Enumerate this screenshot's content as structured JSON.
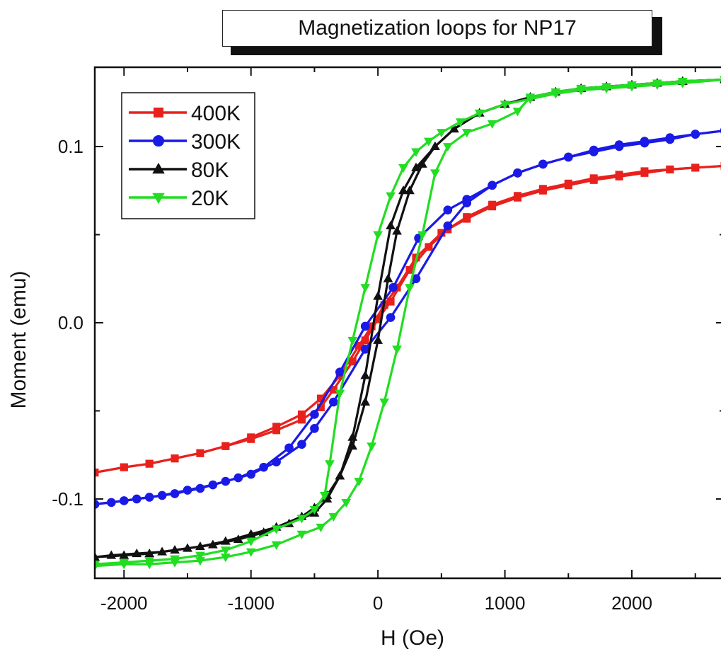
{
  "chart_data": {
    "type": "line",
    "title": "Magnetization loops for NP17",
    "xlabel": "H (Oe)",
    "ylabel": "Moment (emu)",
    "xlim": [
      -2230,
      2730
    ],
    "ylim": [
      -0.145,
      0.145
    ],
    "x_ticks": [
      -2000,
      -1000,
      0,
      1000,
      2000
    ],
    "x_tick_labels": [
      "-2000",
      "-1000",
      "0",
      "1000",
      "2000"
    ],
    "y_ticks": [
      -0.1,
      0.0,
      0.1
    ],
    "y_tick_labels": [
      "-0.1",
      "0.0",
      "0.1"
    ],
    "legend_position": "top-left",
    "grid": false,
    "series": [
      {
        "name": "400K",
        "color": "#e8211d",
        "marker": "square",
        "branches": [
          [
            [
              -2230,
              -0.085
            ],
            [
              -2000,
              -0.082
            ],
            [
              -1800,
              -0.08
            ],
            [
              -1600,
              -0.077
            ],
            [
              -1400,
              -0.074
            ],
            [
              -1200,
              -0.07
            ],
            [
              -1000,
              -0.066
            ],
            [
              -800,
              -0.061
            ],
            [
              -600,
              -0.055
            ],
            [
              -450,
              -0.048
            ],
            [
              -350,
              -0.038
            ],
            [
              -200,
              -0.022
            ],
            [
              -100,
              -0.01
            ],
            [
              0,
              0.002
            ],
            [
              100,
              0.012
            ],
            [
              250,
              0.03
            ],
            [
              400,
              0.043
            ],
            [
              550,
              0.053
            ],
            [
              700,
              0.06
            ],
            [
              900,
              0.067
            ],
            [
              1100,
              0.072
            ],
            [
              1300,
              0.076
            ],
            [
              1500,
              0.079
            ],
            [
              1700,
              0.082
            ],
            [
              1900,
              0.084
            ],
            [
              2100,
              0.086
            ],
            [
              2300,
              0.087
            ],
            [
              2500,
              0.088
            ],
            [
              2730,
              0.089
            ]
          ],
          [
            [
              2730,
              0.089
            ],
            [
              2500,
              0.088
            ],
            [
              2300,
              0.087
            ],
            [
              2100,
              0.085
            ],
            [
              1900,
              0.083
            ],
            [
              1700,
              0.081
            ],
            [
              1500,
              0.078
            ],
            [
              1300,
              0.075
            ],
            [
              1100,
              0.071
            ],
            [
              900,
              0.066
            ],
            [
              700,
              0.059
            ],
            [
              500,
              0.051
            ],
            [
              300,
              0.037
            ],
            [
              150,
              0.02
            ],
            [
              50,
              0.01
            ],
            [
              -50,
              -0.002
            ],
            [
              -150,
              -0.013
            ],
            [
              -300,
              -0.03
            ],
            [
              -450,
              -0.043
            ],
            [
              -600,
              -0.052
            ],
            [
              -800,
              -0.059
            ],
            [
              -1000,
              -0.065
            ],
            [
              -1200,
              -0.07
            ],
            [
              -1400,
              -0.074
            ],
            [
              -1600,
              -0.077
            ],
            [
              -1800,
              -0.08
            ],
            [
              -2000,
              -0.082
            ],
            [
              -2230,
              -0.085
            ]
          ]
        ]
      },
      {
        "name": "300K",
        "color": "#1a1ae6",
        "marker": "circle",
        "branches": [
          [
            [
              -2230,
              -0.103
            ],
            [
              -2000,
              -0.101
            ],
            [
              -1800,
              -0.099
            ],
            [
              -1600,
              -0.097
            ],
            [
              -1400,
              -0.094
            ],
            [
              -1200,
              -0.09
            ],
            [
              -1000,
              -0.086
            ],
            [
              -800,
              -0.079
            ],
            [
              -600,
              -0.069
            ],
            [
              -500,
              -0.06
            ],
            [
              -350,
              -0.045
            ],
            [
              -100,
              -0.015
            ],
            [
              100,
              0.003
            ],
            [
              300,
              0.025
            ],
            [
              550,
              0.055
            ],
            [
              700,
              0.068
            ],
            [
              900,
              0.078
            ],
            [
              1100,
              0.085
            ],
            [
              1300,
              0.09
            ],
            [
              1500,
              0.094
            ],
            [
              1700,
              0.098
            ],
            [
              1900,
              0.101
            ],
            [
              2100,
              0.103
            ],
            [
              2300,
              0.105
            ],
            [
              2500,
              0.107
            ],
            [
              2730,
              0.109
            ]
          ],
          [
            [
              2730,
              0.109
            ],
            [
              2500,
              0.107
            ],
            [
              2300,
              0.104
            ],
            [
              2100,
              0.102
            ],
            [
              1900,
              0.1
            ],
            [
              1700,
              0.097
            ],
            [
              1500,
              0.094
            ],
            [
              1300,
              0.09
            ],
            [
              1100,
              0.085
            ],
            [
              900,
              0.078
            ],
            [
              700,
              0.07
            ],
            [
              550,
              0.064
            ],
            [
              320,
              0.048
            ],
            [
              120,
              0.02
            ],
            [
              -100,
              -0.002
            ],
            [
              -300,
              -0.028
            ],
            [
              -500,
              -0.052
            ],
            [
              -700,
              -0.071
            ],
            [
              -900,
              -0.082
            ],
            [
              -1100,
              -0.088
            ],
            [
              -1300,
              -0.092
            ],
            [
              -1500,
              -0.095
            ],
            [
              -1700,
              -0.098
            ],
            [
              -1900,
              -0.1
            ],
            [
              -2100,
              -0.102
            ],
            [
              -2230,
              -0.103
            ]
          ]
        ]
      },
      {
        "name": "80K",
        "color": "#111111",
        "marker": "triangle-up",
        "branches": [
          [
            [
              -2230,
              -0.133
            ],
            [
              -2000,
              -0.132
            ],
            [
              -1800,
              -0.131
            ],
            [
              -1600,
              -0.129
            ],
            [
              -1400,
              -0.127
            ],
            [
              -1200,
              -0.124
            ],
            [
              -1000,
              -0.12
            ],
            [
              -800,
              -0.116
            ],
            [
              -600,
              -0.11
            ],
            [
              -500,
              -0.105
            ],
            [
              -400,
              -0.098
            ],
            [
              -300,
              -0.087
            ],
            [
              -200,
              -0.07
            ],
            [
              -100,
              -0.045
            ],
            [
              0,
              -0.01
            ],
            [
              80,
              0.025
            ],
            [
              150,
              0.052
            ],
            [
              250,
              0.075
            ],
            [
              350,
              0.09
            ],
            [
              450,
              0.1
            ],
            [
              600,
              0.11
            ],
            [
              800,
              0.119
            ],
            [
              1000,
              0.124
            ],
            [
              1200,
              0.128
            ],
            [
              1400,
              0.131
            ],
            [
              1600,
              0.133
            ],
            [
              1800,
              0.134
            ],
            [
              2000,
              0.135
            ],
            [
              2200,
              0.136
            ],
            [
              2400,
              0.137
            ],
            [
              2730,
              0.138
            ]
          ],
          [
            [
              2730,
              0.138
            ],
            [
              2400,
              0.137
            ],
            [
              2200,
              0.136
            ],
            [
              2000,
              0.135
            ],
            [
              1800,
              0.134
            ],
            [
              1600,
              0.133
            ],
            [
              1400,
              0.131
            ],
            [
              1200,
              0.128
            ],
            [
              1000,
              0.124
            ],
            [
              800,
              0.119
            ],
            [
              600,
              0.11
            ],
            [
              450,
              0.1
            ],
            [
              300,
              0.088
            ],
            [
              200,
              0.075
            ],
            [
              100,
              0.055
            ],
            [
              0,
              0.015
            ],
            [
              -100,
              -0.03
            ],
            [
              -200,
              -0.065
            ],
            [
              -300,
              -0.087
            ],
            [
              -400,
              -0.1
            ],
            [
              -500,
              -0.108
            ],
            [
              -700,
              -0.114
            ],
            [
              -900,
              -0.119
            ],
            [
              -1100,
              -0.123
            ],
            [
              -1300,
              -0.126
            ],
            [
              -1500,
              -0.128
            ],
            [
              -1700,
              -0.13
            ],
            [
              -1900,
              -0.131
            ],
            [
              -2100,
              -0.132
            ],
            [
              -2230,
              -0.133
            ]
          ]
        ]
      },
      {
        "name": "20K",
        "color": "#22dd22",
        "marker": "triangle-down",
        "branches": [
          [
            [
              -2230,
              -0.137
            ],
            [
              -2000,
              -0.136
            ],
            [
              -1800,
              -0.135
            ],
            [
              -1600,
              -0.134
            ],
            [
              -1400,
              -0.132
            ],
            [
              -1200,
              -0.129
            ],
            [
              -1000,
              -0.124
            ],
            [
              -800,
              -0.117
            ],
            [
              -600,
              -0.111
            ],
            [
              -500,
              -0.106
            ],
            [
              -420,
              -0.098
            ],
            [
              -380,
              -0.08
            ],
            [
              -300,
              -0.04
            ],
            [
              -200,
              -0.01
            ],
            [
              -100,
              0.02
            ],
            [
              0,
              0.05
            ],
            [
              100,
              0.072
            ],
            [
              200,
              0.088
            ],
            [
              300,
              0.097
            ],
            [
              400,
              0.103
            ],
            [
              500,
              0.108
            ],
            [
              650,
              0.114
            ],
            [
              800,
              0.119
            ],
            [
              1000,
              0.124
            ],
            [
              1200,
              0.127
            ],
            [
              1400,
              0.13
            ],
            [
              1600,
              0.132
            ],
            [
              1800,
              0.133
            ],
            [
              2000,
              0.134
            ],
            [
              2200,
              0.135
            ],
            [
              2400,
              0.136
            ],
            [
              2730,
              0.138
            ]
          ],
          [
            [
              2730,
              0.138
            ],
            [
              2400,
              0.137
            ],
            [
              2200,
              0.136
            ],
            [
              2000,
              0.135
            ],
            [
              1800,
              0.134
            ],
            [
              1600,
              0.133
            ],
            [
              1400,
              0.131
            ],
            [
              1200,
              0.128
            ],
            [
              1100,
              0.12
            ],
            [
              900,
              0.113
            ],
            [
              700,
              0.108
            ],
            [
              550,
              0.1
            ],
            [
              450,
              0.085
            ],
            [
              350,
              0.05
            ],
            [
              250,
              0.02
            ],
            [
              150,
              -0.015
            ],
            [
              50,
              -0.045
            ],
            [
              -50,
              -0.07
            ],
            [
              -150,
              -0.09
            ],
            [
              -250,
              -0.102
            ],
            [
              -350,
              -0.11
            ],
            [
              -450,
              -0.116
            ],
            [
              -600,
              -0.12
            ],
            [
              -800,
              -0.126
            ],
            [
              -1000,
              -0.13
            ],
            [
              -1200,
              -0.133
            ],
            [
              -1400,
              -0.135
            ],
            [
              -1600,
              -0.136
            ],
            [
              -1800,
              -0.137
            ],
            [
              -2000,
              -0.137
            ],
            [
              -2230,
              -0.138
            ]
          ]
        ]
      }
    ]
  }
}
